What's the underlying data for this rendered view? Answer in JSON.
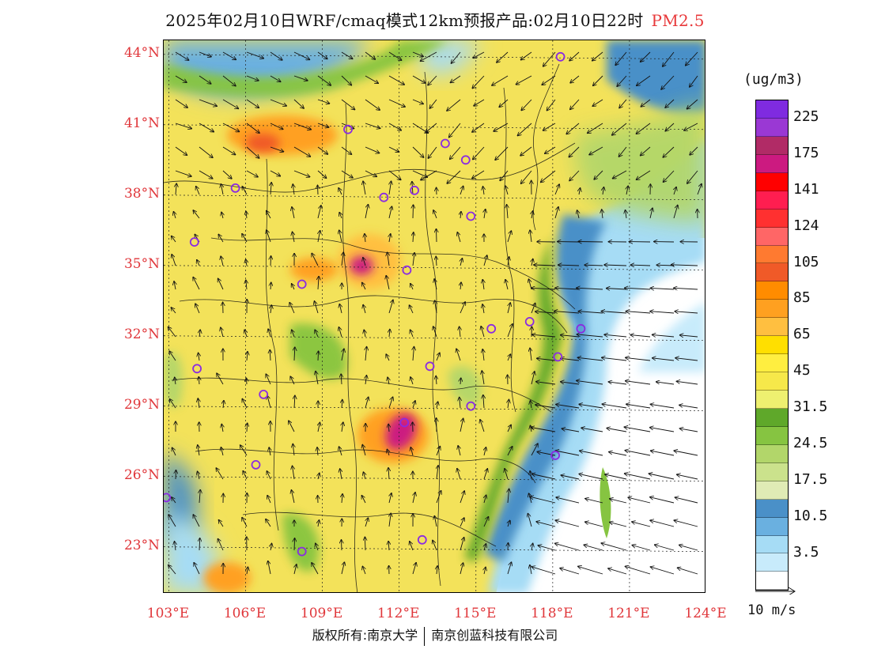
{
  "title": {
    "main": "2025年02月10日WRF/cmaq模式12km预报产品:02月10日22时",
    "variable": "PM2.5",
    "variable_color": "#e8383a"
  },
  "map": {
    "lat_labels": [
      "44°N",
      "41°N",
      "38°N",
      "35°N",
      "32°N",
      "29°N",
      "26°N",
      "23°N"
    ],
    "lat_values": [
      44,
      41,
      38,
      35,
      32,
      29,
      26,
      23
    ],
    "lon_labels": [
      "103°E",
      "106°E",
      "109°E",
      "112°E",
      "115°E",
      "118°E",
      "121°E",
      "124°E"
    ],
    "lon_values": [
      103,
      106,
      109,
      112,
      115,
      118,
      121,
      124
    ],
    "lat_range": [
      21,
      44.6
    ],
    "lon_range": [
      102.8,
      124
    ],
    "axis_label_color": "#e0363a",
    "station_marker_color": "#8a2be2",
    "stations": [
      {
        "lon": 118.3,
        "lat": 43.9
      },
      {
        "lon": 110.0,
        "lat": 40.8
      },
      {
        "lon": 113.8,
        "lat": 40.2
      },
      {
        "lon": 114.6,
        "lat": 39.5
      },
      {
        "lon": 105.6,
        "lat": 38.3
      },
      {
        "lon": 111.4,
        "lat": 37.9
      },
      {
        "lon": 112.6,
        "lat": 38.2
      },
      {
        "lon": 114.8,
        "lat": 37.1
      },
      {
        "lon": 104.0,
        "lat": 36.0
      },
      {
        "lon": 112.3,
        "lat": 34.8
      },
      {
        "lon": 108.2,
        "lat": 34.2
      },
      {
        "lon": 115.6,
        "lat": 32.3
      },
      {
        "lon": 117.1,
        "lat": 32.6
      },
      {
        "lon": 119.1,
        "lat": 32.3
      },
      {
        "lon": 104.1,
        "lat": 30.6
      },
      {
        "lon": 113.2,
        "lat": 30.7
      },
      {
        "lon": 118.2,
        "lat": 31.1
      },
      {
        "lon": 106.7,
        "lat": 29.5
      },
      {
        "lon": 112.2,
        "lat": 28.3
      },
      {
        "lon": 114.8,
        "lat": 29.0
      },
      {
        "lon": 106.4,
        "lat": 26.5
      },
      {
        "lon": 118.1,
        "lat": 26.9
      },
      {
        "lon": 102.9,
        "lat": 25.1
      },
      {
        "lon": 108.2,
        "lat": 22.8
      },
      {
        "lon": 112.9,
        "lat": 23.3
      }
    ]
  },
  "colorbar": {
    "unit": "(ug/m3)",
    "colors_top_to_bottom": [
      "#7f2be0",
      "#9a38d4",
      "#b12b66",
      "#cc1a80",
      "#ff0000",
      "#ff1e50",
      "#ff3030",
      "#ff6666",
      "#ff7a30",
      "#f05a28",
      "#ff8c00",
      "#ffa020",
      "#ffbf40",
      "#ffdf00",
      "#ffee40",
      "#f6e84a",
      "#eef070",
      "#5fa82a",
      "#86c441",
      "#b2d66a",
      "#cbe28c",
      "#e0ebb5",
      "#4a90c8",
      "#6ab0e0",
      "#a6dcf5",
      "#c8ebfb",
      "#ffffff"
    ],
    "labels": [
      "225",
      "175",
      "141",
      "124",
      "105",
      "85",
      "65",
      "45",
      "31.5",
      "24.5",
      "17.5",
      "10.5",
      "3.5"
    ]
  },
  "wind_reference": {
    "label": "10 m/s"
  },
  "footer": {
    "left": "版权所有:南京大学",
    "right": "南京创蓝科技有限公司"
  }
}
